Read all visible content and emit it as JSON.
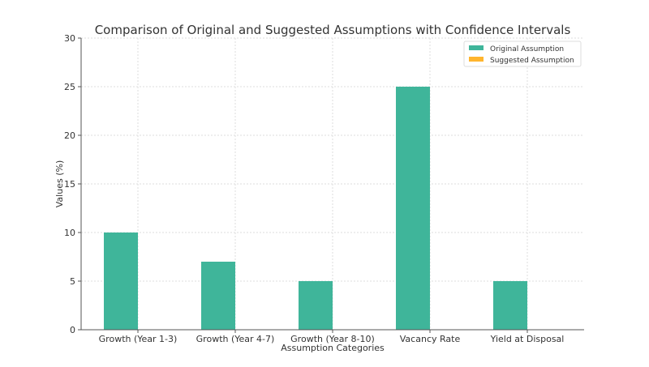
{
  "chart_data": {
    "type": "bar",
    "title": "Comparison of Original and Suggested Assumptions with Confidence Intervals",
    "xlabel": "Assumption Categories",
    "ylabel": "Values (%)",
    "categories": [
      "Growth (Year 1-3)",
      "Growth (Year 4-7)",
      "Growth (Year 8-10)",
      "Vacancy Rate",
      "Yield at Disposal"
    ],
    "series": [
      {
        "name": "Original Assumption",
        "color": "#3fb59a",
        "values": [
          10,
          7,
          5,
          25,
          5
        ]
      },
      {
        "name": "Suggested Assumption",
        "color": "#ffb52e",
        "values": [
          null,
          null,
          null,
          null,
          null
        ]
      }
    ],
    "ylim": [
      0,
      30
    ],
    "yticks": [
      0,
      5,
      10,
      15,
      20,
      25,
      30
    ],
    "grid": true,
    "legend_placement": "top-right"
  }
}
